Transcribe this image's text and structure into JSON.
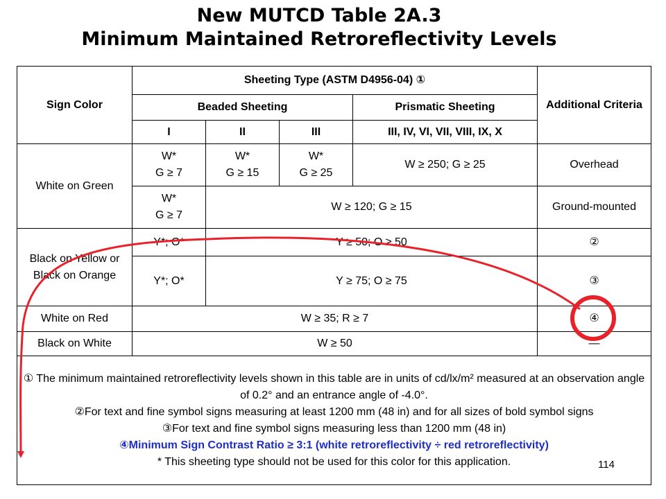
{
  "title": {
    "line1": "New MUTCD Table 2A.3",
    "line2": "Minimum Maintained Retroreflectivity Levels"
  },
  "table": {
    "header": {
      "sign_color": "Sign Color",
      "sheeting_type": "Sheeting Type (ASTM D4956-04) ①",
      "beaded": "Beaded Sheeting",
      "prismatic": "Prismatic Sheeting",
      "additional_criteria": "Additional Criteria",
      "type_i": "I",
      "type_ii": "II",
      "type_iii": "III",
      "type_prismatic": "III, IV, VI, VII, VIII, IX, X"
    },
    "rows": {
      "white_on_green": {
        "color": "White on Green",
        "r1_i_a": "W*",
        "r1_i_b": "G ≥ 7",
        "r1_ii_a": "W*",
        "r1_ii_b": "G ≥ 15",
        "r1_iii_a": "W*",
        "r1_iii_b": "G ≥ 25",
        "r1_prismatic": "W ≥ 250; G ≥ 25",
        "r1_criteria": "Overhead",
        "r2_i_a": "W*",
        "r2_i_b": "G ≥ 7",
        "r2_rest": "W ≥ 120; G ≥ 15",
        "r2_criteria": "Ground-mounted"
      },
      "black_on_yellow": {
        "color": "Black on Yellow or Black on Orange",
        "r1_i": "Y*; O*",
        "r1_rest": "Y ≥ 50; O ≥ 50",
        "r1_criteria": "②",
        "r2_i": "Y*; O*",
        "r2_rest": "Y ≥ 75; O ≥ 75",
        "r2_criteria": "③"
      },
      "white_on_red": {
        "color": "White on Red",
        "value": "W ≥ 35; R ≥ 7",
        "criteria": "④"
      },
      "black_on_white": {
        "color": "Black on White",
        "value": "W ≥ 50",
        "criteria": "—"
      }
    },
    "notes": {
      "n1": "① The minimum maintained retroreflectivity levels shown in this table are in units of cd/lx/m² measured at an observation angle of 0.2° and an entrance angle of -4.0°.",
      "n2": "②For text and fine symbol signs measuring at least 1200 mm (48 in) and for all sizes of bold symbol signs",
      "n3": "③For text and fine symbol signs measuring less than 1200 mm (48 in)",
      "n4": "④Minimum Sign Contrast Ratio ≥ 3:1 (white retroreflectivity ÷ red retroreflectivity)",
      "n5": "*  This sheeting type should not be used for this color for this application."
    }
  },
  "page_number": "114",
  "colors": {
    "annotation_red": "#e8222a",
    "note_blue": "#1f2fc4"
  }
}
